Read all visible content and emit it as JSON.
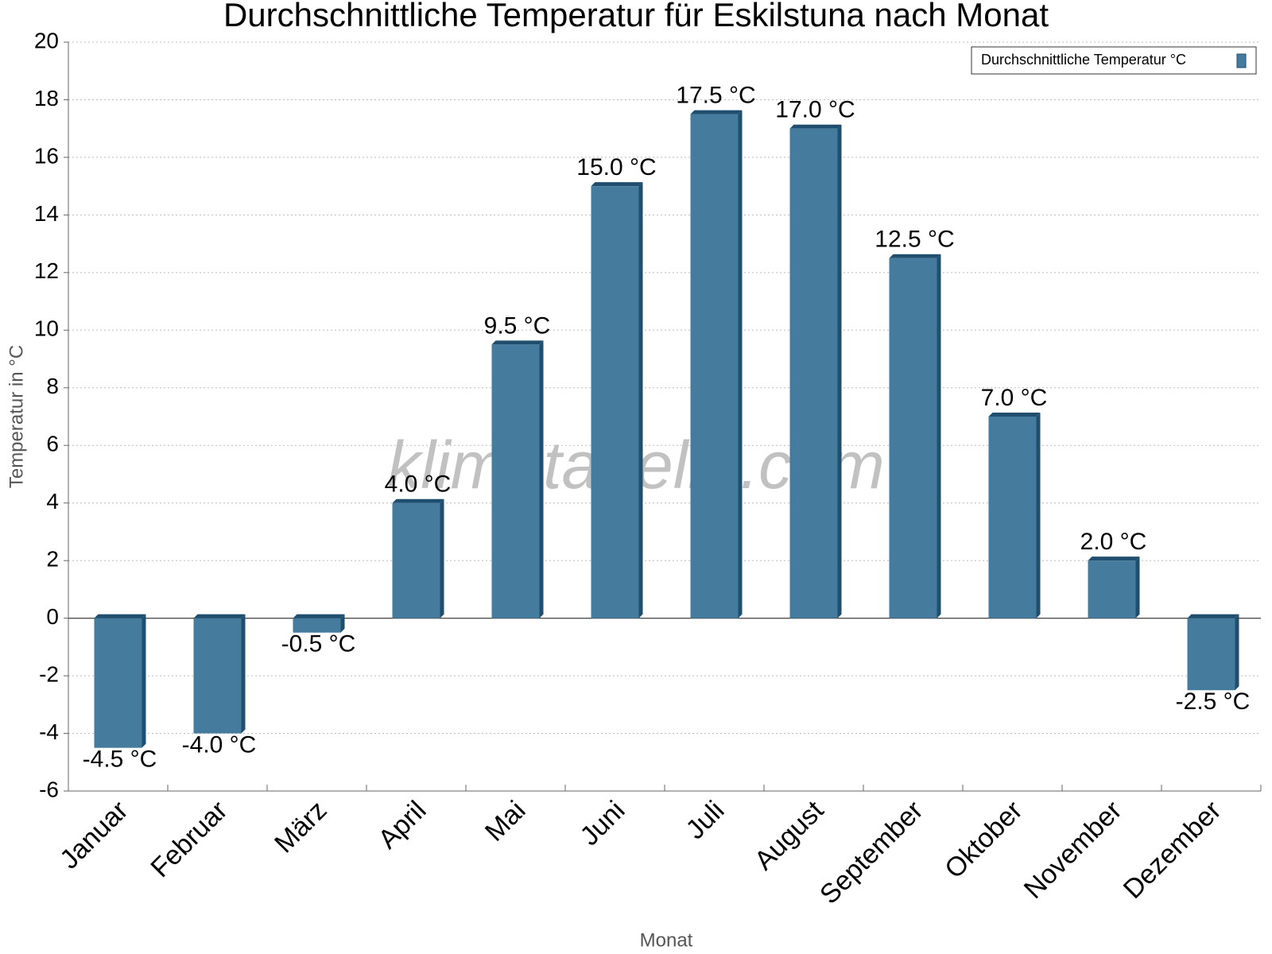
{
  "chart_data": {
    "type": "bar",
    "title": "Durchschnittliche Temperatur für Eskilstuna nach Monat",
    "x_label": "Monat",
    "y_label": "Temperatur in °C",
    "watermark": "klimatabelle.com",
    "categories": [
      "Januar",
      "Februar",
      "März",
      "April",
      "Mai",
      "Juni",
      "Juli",
      "August",
      "September",
      "Oktober",
      "November",
      "Dezember"
    ],
    "series": [
      {
        "name": "Durchschnittliche Temperatur °C",
        "color": "#457b9d",
        "values": [
          -4.5,
          -4.0,
          -0.5,
          4.0,
          9.5,
          15.0,
          17.5,
          17.0,
          12.5,
          7.0,
          2.0,
          -2.5
        ],
        "value_labels": [
          "-4.5 °C",
          "-4.0 °C",
          "-0.5 °C",
          "4.0 °C",
          "9.5 °C",
          "15.0 °C",
          "17.5 °C",
          "17.0 °C",
          "12.5 °C",
          "7.0 °C",
          "2.0 °C",
          "-2.5 °C"
        ]
      }
    ],
    "ylim": [
      -6,
      20
    ],
    "yticks": [
      -6,
      -4,
      -2,
      0,
      2,
      4,
      6,
      8,
      10,
      12,
      14,
      16,
      18,
      20
    ],
    "grid": true,
    "legend": "top-right"
  }
}
